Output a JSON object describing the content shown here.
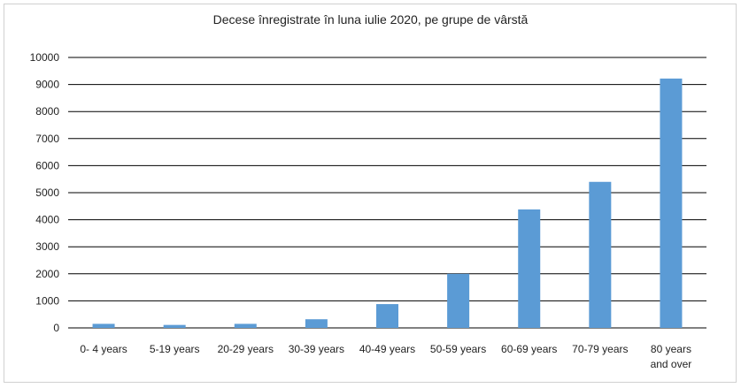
{
  "chart_data": {
    "type": "bar",
    "title": "Decese înregistrate în luna iulie 2020, pe grupe de vârstă",
    "xlabel": "",
    "ylabel": "",
    "ylim": [
      0,
      10000
    ],
    "yticks": [
      "0",
      "1000",
      "2000",
      "3000",
      "4000",
      "5000",
      "6000",
      "7000",
      "8000",
      "9000",
      "10000"
    ],
    "categories": [
      "0- 4 years",
      "5-19 years",
      "20-29 years",
      "30-39 years",
      "40-49 years",
      "50-59 years",
      "60-69 years",
      "70-79 years",
      "80 years and over"
    ],
    "values": [
      150,
      110,
      150,
      320,
      880,
      2000,
      4380,
      5400,
      9220
    ],
    "grid": true,
    "legend": "none",
    "bar_color": "#5b9bd5",
    "grid_color": "#000000"
  }
}
